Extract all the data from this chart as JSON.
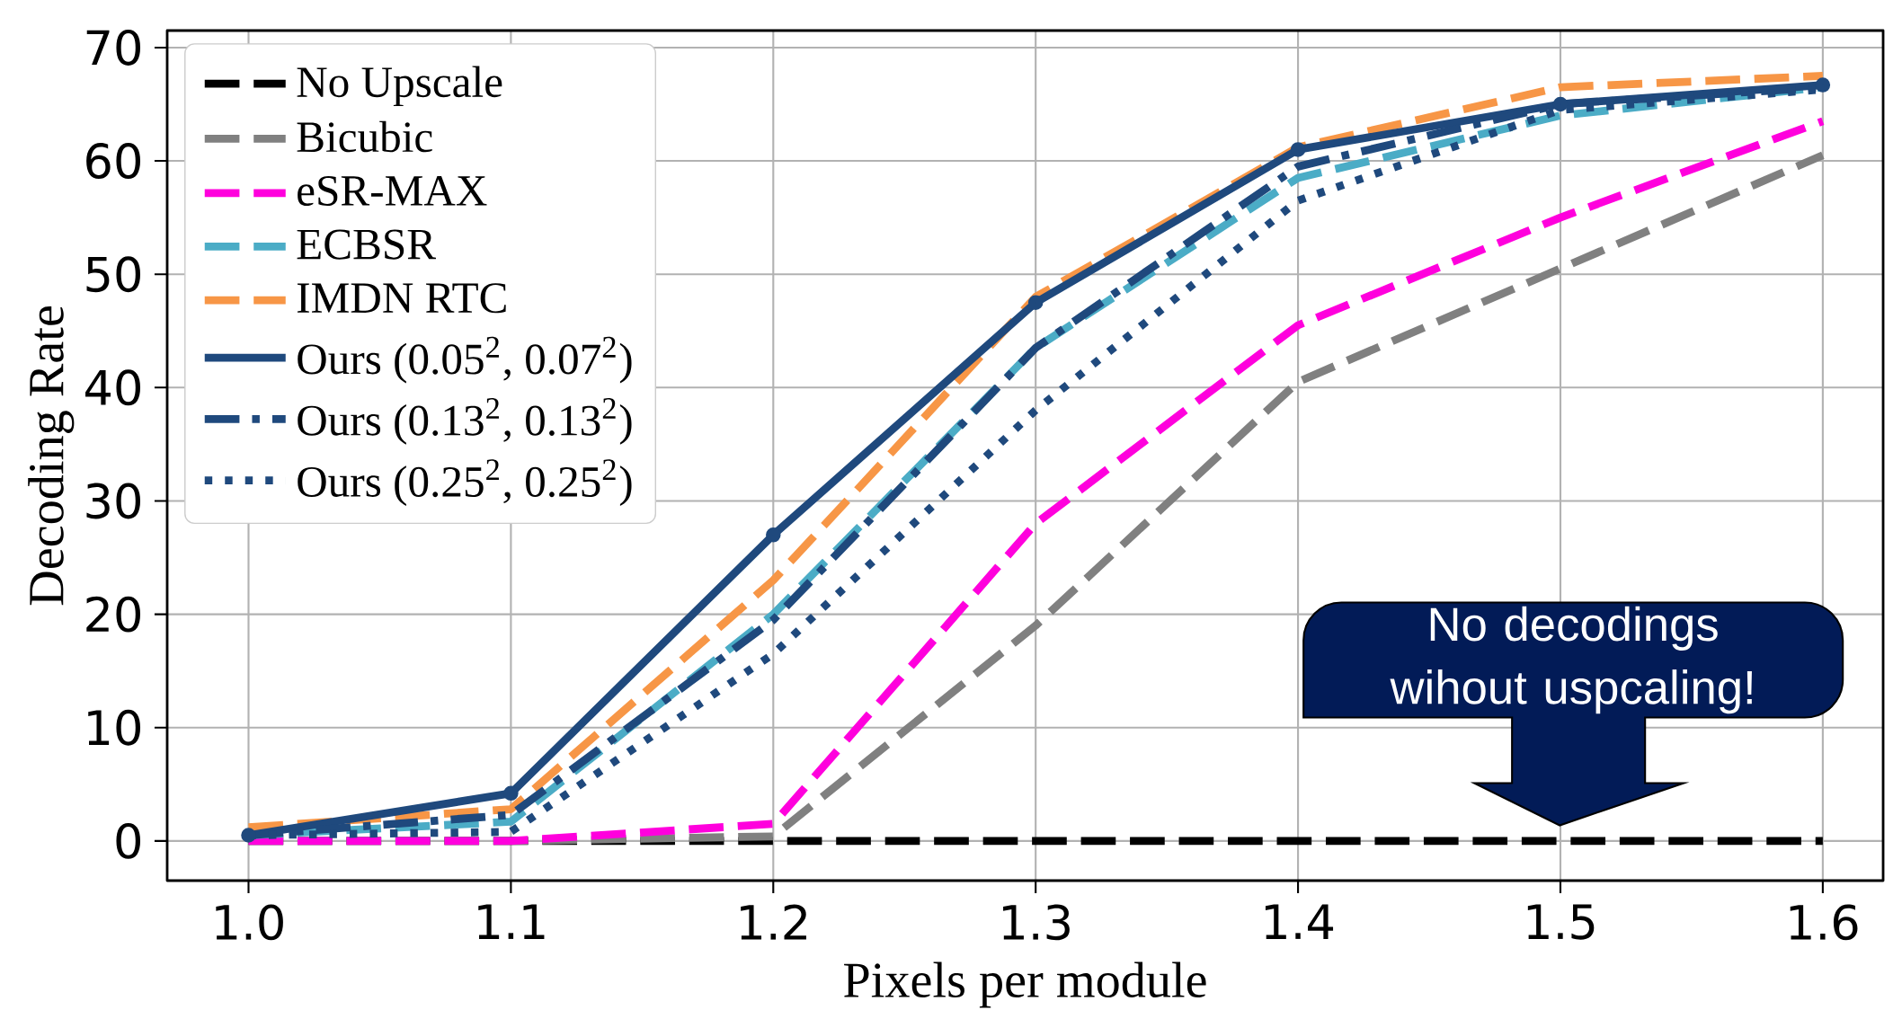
{
  "chart_data": {
    "type": "line",
    "xlabel": "Pixels per module",
    "ylabel": "Decoding Rate",
    "x": [
      1.0,
      1.1,
      1.2,
      1.3,
      1.4,
      1.5,
      1.6
    ],
    "series": [
      {
        "name": "No Upscale",
        "color": "#000000",
        "line_style": "dashed",
        "values": [
          0,
          0,
          0,
          0,
          0,
          0,
          0
        ]
      },
      {
        "name": "Bicubic",
        "color": "#808080",
        "line_style": "dashed",
        "values": [
          0,
          0,
          0.4,
          19,
          40.5,
          50.5,
          60.5
        ]
      },
      {
        "name": "eSR-MAX",
        "color": "#ff00dd",
        "line_style": "dashed",
        "values": [
          0,
          0,
          1.5,
          28,
          45.5,
          55,
          63.5
        ]
      },
      {
        "name": "ECBSR",
        "color": "#4bacc6",
        "line_style": "dashed",
        "values": [
          0.5,
          1.7,
          20,
          43.5,
          58.5,
          64,
          66.5
        ]
      },
      {
        "name": "IMDN RTC",
        "color": "#f79646",
        "line_style": "dashed",
        "values": [
          1.2,
          2.8,
          23,
          48,
          61.2,
          66.5,
          67.5
        ]
      },
      {
        "name": "Ours (0.05$^{2}$, 0.07$^{2}$)",
        "color": "#1f497d",
        "line_style": "solid",
        "marker": "circle",
        "values": [
          0.5,
          4.2,
          27,
          47.5,
          61,
          65,
          66.7
        ]
      },
      {
        "name": "Ours (0.13$^{2}$, 0.13$^{2}$)",
        "color": "#1f497d",
        "line_style": "dashdot",
        "values": [
          0.5,
          2.3,
          19.5,
          43.5,
          59.5,
          65,
          66.5
        ]
      },
      {
        "name": "Ours (0.25$^{2}$, 0.25$^{2}$)",
        "color": "#1f497d",
        "line_style": "dotted",
        "values": [
          0.5,
          0.8,
          16.5,
          38,
          56.5,
          64.5,
          66.3
        ]
      }
    ],
    "xlim": [
      0.969,
      1.623
    ],
    "ylim": [
      -3.5,
      71.5
    ],
    "xticks": [
      {
        "value": 1.0,
        "label": "1.0"
      },
      {
        "value": 1.1,
        "label": "1.1"
      },
      {
        "value": 1.2,
        "label": "1.2"
      },
      {
        "value": 1.3,
        "label": "1.3"
      },
      {
        "value": 1.4,
        "label": "1.4"
      },
      {
        "value": 1.5,
        "label": "1.5"
      },
      {
        "value": 1.6,
        "label": "1.6"
      }
    ],
    "yticks": [
      0,
      10,
      20,
      30,
      40,
      50,
      60,
      70
    ],
    "grid": true,
    "legend": "top left",
    "annotations": [
      "No decodings wihout uspcaling!"
    ]
  }
}
